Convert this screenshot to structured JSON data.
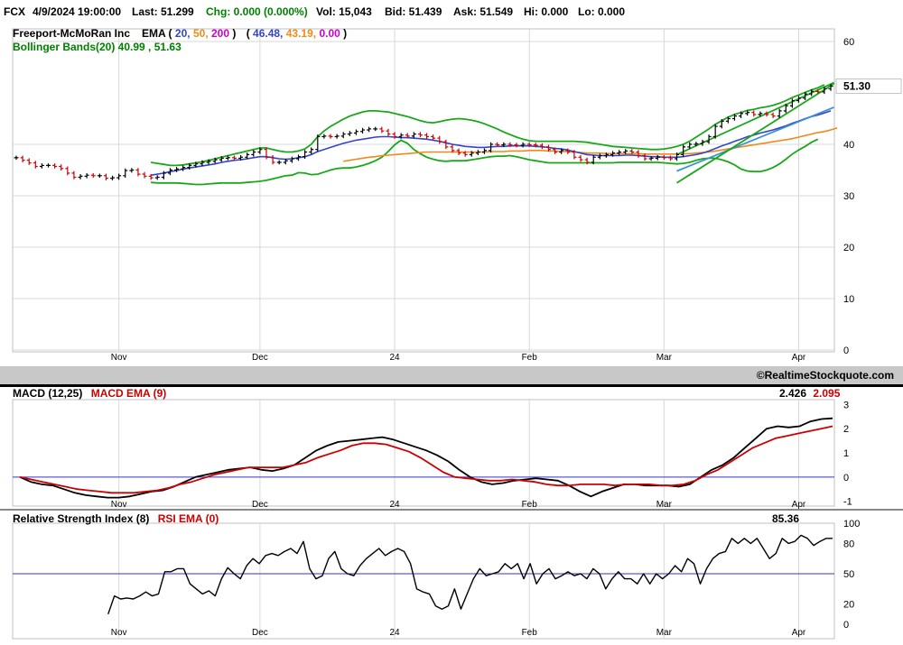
{
  "quote": {
    "symbol": "FCX",
    "datetime": "4/9/2024 19:00:00",
    "last": "Last: 51.299",
    "chg": "Chg: 0.000 (0.000%)",
    "vol": "Vol: 15,043",
    "bid": "Bid: 51.439",
    "ask": "Ask: 51.549",
    "hi": "Hi: 0.000",
    "lo": "Lo: 0.000"
  },
  "colors": {
    "green": "#008000",
    "orange": "#ff8c00",
    "magenta": "#cc00cc",
    "blue": "#3344cc",
    "red": "#cc0000",
    "bb_green": "#1aa81a",
    "ema50": "#f08a1a",
    "ema20": "#3344cc",
    "trend": "#3b8fd4",
    "ref_line": "#3333cc"
  },
  "copyright": "©RealtimeStockquote.com",
  "chart_data": [
    {
      "type": "line",
      "title": "Freeport-McMoRan Inc",
      "legend": {
        "ema_label": "EMA (",
        "ema_p1": "20,",
        "ema_p2": "50,",
        "ema_p3": "200",
        "ema_close": ")",
        "ema_open2": "(",
        "ema_v1": "46.48,",
        "ema_v2": "43.19,",
        "ema_v3": "0.00",
        "ema_close2": ")",
        "bb_label": "Bollinger Bands(20) 40.99 , 51.63"
      },
      "last_price_label": "51.30",
      "last_price": 51.3,
      "ylim": [
        0,
        60
      ],
      "yticks": [
        0,
        10,
        20,
        30,
        40,
        60
      ],
      "xticks": [
        {
          "label": "Nov",
          "i": 16
        },
        {
          "label": "Dec",
          "i": 38
        },
        {
          "label": "24",
          "i": 59
        },
        {
          "label": "Feb",
          "i": 80
        },
        {
          "label": "Mar",
          "i": 101
        },
        {
          "label": "Apr",
          "i": 122
        }
      ],
      "n_bars": 128,
      "series": [
        {
          "key": "price",
          "values": [
            37.4,
            36.9,
            36.4,
            35.7,
            35.9,
            35.9,
            35.7,
            35.3,
            34.4,
            33.6,
            33.8,
            34.0,
            33.9,
            33.9,
            33.4,
            33.5,
            33.9,
            34.9,
            35.0,
            34.2,
            33.8,
            33.5,
            33.6,
            34.4,
            35.0,
            35.2,
            35.5,
            35.9,
            36.2,
            36.5,
            36.7,
            37.0,
            37.3,
            37.4,
            37.3,
            37.5,
            38.0,
            38.5,
            39.0,
            37.5,
            36.5,
            36.5,
            36.8,
            37.2,
            37.6,
            38.5,
            39.0,
            41.5,
            41.6,
            41.5,
            41.6,
            42.0,
            42.2,
            42.5,
            42.8,
            43.0,
            43.0,
            42.6,
            42.0,
            41.5,
            41.8,
            41.6,
            42.0,
            41.8,
            41.5,
            41.2,
            40.5,
            39.5,
            38.8,
            38.3,
            38.0,
            38.3,
            38.5,
            38.8,
            40.0,
            39.9,
            40.0,
            39.9,
            39.8,
            40.0,
            39.9,
            39.8,
            39.5,
            39.0,
            38.5,
            38.8,
            38.5,
            37.5,
            37.0,
            36.5,
            37.5,
            37.8,
            38.0,
            38.3,
            38.5,
            38.7,
            38.5,
            37.8,
            37.2,
            37.3,
            37.5,
            37.4,
            37.2,
            38.0,
            39.5,
            40.0,
            40.1,
            40.5,
            41.5,
            43.5,
            44.5,
            45.0,
            45.5,
            46.0,
            46.2,
            45.8,
            46.0,
            45.8,
            45.5,
            46.5,
            47.5,
            48.5,
            49.0,
            49.8,
            50.3,
            50.2,
            50.8,
            51.3
          ]
        },
        {
          "key": "ema20",
          "values": [
            null,
            null,
            null,
            null,
            null,
            null,
            null,
            null,
            null,
            null,
            null,
            null,
            null,
            null,
            null,
            null,
            null,
            null,
            null,
            null,
            null,
            34.0,
            34.2,
            34.4,
            34.7,
            34.9,
            35.2,
            35.4,
            35.6,
            35.8,
            36.0,
            36.2,
            36.5,
            36.7,
            36.9,
            37.0,
            37.2,
            37.4,
            37.6,
            37.6,
            37.4,
            37.2,
            37.1,
            37.2,
            37.4,
            37.6,
            38.0,
            38.6,
            39.0,
            39.4,
            39.8,
            40.2,
            40.5,
            40.8,
            41.0,
            41.2,
            41.4,
            41.5,
            41.5,
            41.4,
            41.3,
            41.3,
            41.2,
            41.1,
            41.0,
            40.8,
            40.6,
            40.3,
            40.0,
            39.8,
            39.6,
            39.5,
            39.4,
            39.4,
            39.5,
            39.6,
            39.6,
            39.7,
            39.7,
            39.7,
            39.7,
            39.6,
            39.5,
            39.4,
            39.2,
            39.1,
            38.9,
            38.6,
            38.3,
            38.0,
            37.9,
            37.8,
            37.8,
            37.8,
            37.8,
            37.9,
            37.9,
            37.8,
            37.7,
            37.6,
            37.6,
            37.5,
            37.5,
            37.5,
            37.6,
            37.8,
            38.0,
            38.3,
            38.7,
            39.2,
            39.7,
            40.1,
            40.6,
            41.0,
            41.5,
            41.8,
            42.2,
            42.5,
            42.8,
            43.2,
            43.6,
            44.1,
            44.5,
            45.0,
            45.4,
            45.7,
            46.1,
            46.5
          ]
        },
        {
          "key": "ema50",
          "values": [
            null,
            null,
            null,
            null,
            null,
            null,
            null,
            null,
            null,
            null,
            null,
            null,
            null,
            null,
            null,
            null,
            null,
            null,
            null,
            null,
            null,
            null,
            null,
            null,
            null,
            null,
            null,
            null,
            null,
            null,
            null,
            null,
            null,
            null,
            null,
            null,
            null,
            null,
            null,
            null,
            null,
            null,
            null,
            null,
            null,
            null,
            null,
            null,
            null,
            null,
            null,
            36.7,
            36.9,
            37.1,
            37.3,
            37.5,
            37.6,
            37.8,
            37.9,
            38.0,
            38.1,
            38.2,
            38.3,
            38.4,
            38.5,
            38.5,
            38.5,
            38.5,
            38.5,
            38.5,
            38.5,
            38.5,
            38.5,
            38.5,
            38.6,
            38.6,
            38.6,
            38.7,
            38.7,
            38.7,
            38.8,
            38.8,
            38.8,
            38.7,
            38.7,
            38.6,
            38.6,
            38.5,
            38.4,
            38.3,
            38.3,
            38.3,
            38.2,
            38.2,
            38.2,
            38.2,
            38.2,
            38.2,
            38.1,
            38.1,
            38.1,
            38.1,
            38.1,
            38.1,
            38.2,
            38.2,
            38.3,
            38.4,
            38.5,
            38.7,
            38.9,
            39.1,
            39.3,
            39.5,
            39.7,
            39.9,
            40.1,
            40.3,
            40.5,
            40.7,
            40.9,
            41.1,
            41.4,
            41.7,
            42.0,
            42.3,
            42.5,
            42.8,
            43.2
          ]
        },
        {
          "key": "bb_upper",
          "values": [
            null,
            null,
            null,
            null,
            null,
            null,
            null,
            null,
            null,
            null,
            null,
            null,
            null,
            null,
            null,
            null,
            null,
            null,
            null,
            null,
            null,
            36.5,
            36.3,
            36.1,
            35.9,
            35.9,
            36.0,
            36.2,
            36.4,
            36.6,
            36.9,
            37.2,
            37.5,
            37.8,
            38.1,
            38.4,
            38.7,
            39.0,
            39.3,
            39.3,
            39.0,
            38.7,
            38.5,
            38.5,
            38.7,
            39.1,
            40.0,
            41.5,
            42.6,
            43.5,
            44.2,
            44.9,
            45.5,
            45.9,
            46.3,
            46.5,
            46.5,
            46.4,
            46.3,
            46.0,
            45.7,
            45.4,
            45.0,
            44.6,
            44.3,
            44.2,
            44.4,
            44.7,
            44.9,
            45.0,
            44.9,
            44.7,
            44.4,
            44.0,
            43.5,
            43.0,
            42.4,
            41.9,
            41.4,
            41.0,
            40.7,
            40.6,
            40.6,
            40.6,
            40.6,
            40.6,
            40.6,
            40.6,
            40.5,
            40.4,
            40.2,
            40.0,
            39.8,
            39.6,
            39.5,
            39.4,
            39.3,
            39.2,
            39.1,
            39.0,
            39.0,
            39.1,
            39.3,
            39.6,
            40.0,
            40.6,
            41.4,
            42.2,
            43.0,
            43.9,
            44.6,
            45.3,
            45.8,
            46.2,
            46.6,
            46.8,
            47.1,
            47.3,
            47.6,
            48.0,
            48.5,
            49.1,
            49.6,
            50.1,
            50.6,
            51.0,
            51.6
          ]
        },
        {
          "key": "bb_lower",
          "values": [
            null,
            null,
            null,
            null,
            null,
            null,
            null,
            null,
            null,
            null,
            null,
            null,
            null,
            null,
            null,
            null,
            null,
            null,
            null,
            null,
            null,
            32.6,
            32.5,
            32.5,
            32.5,
            32.5,
            32.4,
            32.3,
            32.2,
            32.2,
            32.3,
            32.4,
            32.5,
            32.5,
            32.5,
            32.5,
            32.6,
            32.7,
            32.8,
            33.0,
            33.3,
            33.6,
            33.9,
            34.0,
            34.5,
            34.4,
            34.1,
            34.2,
            34.6,
            35.0,
            35.3,
            35.4,
            35.4,
            35.6,
            35.9,
            36.3,
            36.8,
            37.5,
            38.6,
            39.9,
            40.8,
            40.2,
            39.0,
            38.2,
            37.5,
            37.1,
            36.8,
            36.7,
            36.8,
            36.8,
            36.8,
            37.0,
            37.2,
            37.4,
            37.6,
            37.7,
            37.7,
            37.8,
            37.6,
            37.3,
            37.0,
            36.8,
            36.6,
            36.4,
            36.4,
            36.4,
            36.4,
            36.4,
            36.4,
            36.4,
            36.4,
            36.4,
            36.4,
            36.4,
            36.5,
            36.5,
            36.5,
            36.5,
            36.5,
            36.5,
            36.5,
            36.4,
            36.3,
            36.2,
            36.3,
            36.5,
            36.9,
            37.2,
            37.3,
            37.3,
            37.0,
            36.6,
            36.0,
            35.2,
            34.8,
            34.7,
            34.7,
            35.0,
            35.5,
            36.2,
            37.1,
            38.1,
            38.9,
            39.6,
            40.4,
            41.0
          ]
        },
        {
          "key": "trend_lines",
          "segments": [
            {
              "i0": 103,
              "v0": 34.8,
              "i1": 128,
              "v1": 47.2
            },
            {
              "i0": 103,
              "v0": 38.0,
              "i1": 128,
              "v1": 52.0
            },
            {
              "i0": 103,
              "v0": 32.5,
              "i1": 128,
              "v1": 51.8
            }
          ]
        }
      ]
    },
    {
      "type": "line",
      "title": "MACD (12,25)",
      "signal_label": "MACD EMA (9)",
      "value_labels": [
        "2.426",
        "2.095"
      ],
      "ylim": [
        -1.2,
        3.2
      ],
      "yticks": [
        -1,
        0,
        1,
        2,
        3
      ],
      "series": [
        {
          "name": "MACD (12,25)",
          "values": [
            0.0,
            -0.2,
            -0.3,
            -0.35,
            -0.5,
            -0.65,
            -0.75,
            -0.8,
            -0.85,
            -0.85,
            -0.8,
            -0.7,
            -0.6,
            -0.55,
            -0.4,
            -0.2,
            0.0,
            0.1,
            0.2,
            0.3,
            0.35,
            0.4,
            0.3,
            0.25,
            0.35,
            0.5,
            0.8,
            1.1,
            1.3,
            1.45,
            1.5,
            1.55,
            1.6,
            1.65,
            1.55,
            1.4,
            1.25,
            1.1,
            0.9,
            0.65,
            0.3,
            0.0,
            -0.2,
            -0.3,
            -0.25,
            -0.15,
            -0.1,
            -0.05,
            -0.1,
            -0.15,
            -0.35,
            -0.6,
            -0.8,
            -0.6,
            -0.45,
            -0.3,
            -0.3,
            -0.35,
            -0.35,
            -0.35,
            -0.4,
            -0.3,
            0.0,
            0.3,
            0.5,
            0.8,
            1.2,
            1.6,
            2.0,
            2.1,
            2.05,
            2.1,
            2.3,
            2.4,
            2.43
          ]
        },
        {
          "name": "MACD EMA (9)",
          "values": [
            0.0,
            -0.1,
            -0.2,
            -0.3,
            -0.4,
            -0.5,
            -0.55,
            -0.6,
            -0.65,
            -0.65,
            -0.65,
            -0.6,
            -0.55,
            -0.45,
            -0.3,
            -0.2,
            -0.05,
            0.1,
            0.2,
            0.3,
            0.4,
            0.4,
            0.4,
            0.4,
            0.5,
            0.6,
            0.8,
            0.95,
            1.1,
            1.3,
            1.4,
            1.4,
            1.35,
            1.2,
            1.05,
            0.8,
            0.5,
            0.2,
            0.0,
            -0.05,
            -0.1,
            -0.15,
            -0.15,
            -0.1,
            -0.15,
            -0.2,
            -0.3,
            -0.35,
            -0.35,
            -0.3,
            -0.3,
            -0.3,
            -0.35,
            -0.3,
            -0.3,
            -0.3,
            -0.35,
            -0.35,
            -0.3,
            -0.15,
            0.1,
            0.3,
            0.6,
            0.9,
            1.2,
            1.4,
            1.6,
            1.7,
            1.8,
            1.9,
            2.0,
            2.1
          ]
        }
      ]
    },
    {
      "type": "line",
      "title": "Relative Strength Index (8)",
      "signal_label": "RSI EMA (0)",
      "value_label": "85.36",
      "ylim": [
        0,
        100
      ],
      "yticks": [
        0,
        20,
        50,
        80,
        100
      ],
      "ref_value": 50,
      "series": [
        {
          "name": "Relative Strength Index (8)",
          "values": [
            null,
            null,
            null,
            null,
            null,
            null,
            null,
            null,
            null,
            null,
            null,
            null,
            null,
            null,
            10,
            28,
            25,
            26,
            25,
            28,
            32,
            28,
            30,
            52,
            52,
            55,
            55,
            40,
            35,
            30,
            33,
            28,
            45,
            56,
            50,
            45,
            58,
            65,
            60,
            68,
            70,
            68,
            72,
            75,
            70,
            82,
            55,
            45,
            48,
            65,
            72,
            55,
            50,
            48,
            58,
            65,
            70,
            75,
            68,
            72,
            75,
            72,
            60,
            35,
            32,
            30,
            18,
            15,
            18,
            35,
            15,
            30,
            45,
            55,
            48,
            50,
            52,
            60,
            55,
            60,
            45,
            60,
            40,
            50,
            55,
            45,
            48,
            52,
            48,
            50,
            45,
            55,
            50,
            35,
            45,
            52,
            45,
            45,
            40,
            50,
            40,
            50,
            45,
            50,
            58,
            52,
            65,
            60,
            40,
            55,
            65,
            70,
            72,
            85,
            80,
            85,
            80,
            85,
            75,
            65,
            70,
            85,
            80,
            82,
            88,
            85,
            78,
            82,
            85,
            85
          ]
        }
      ]
    }
  ]
}
